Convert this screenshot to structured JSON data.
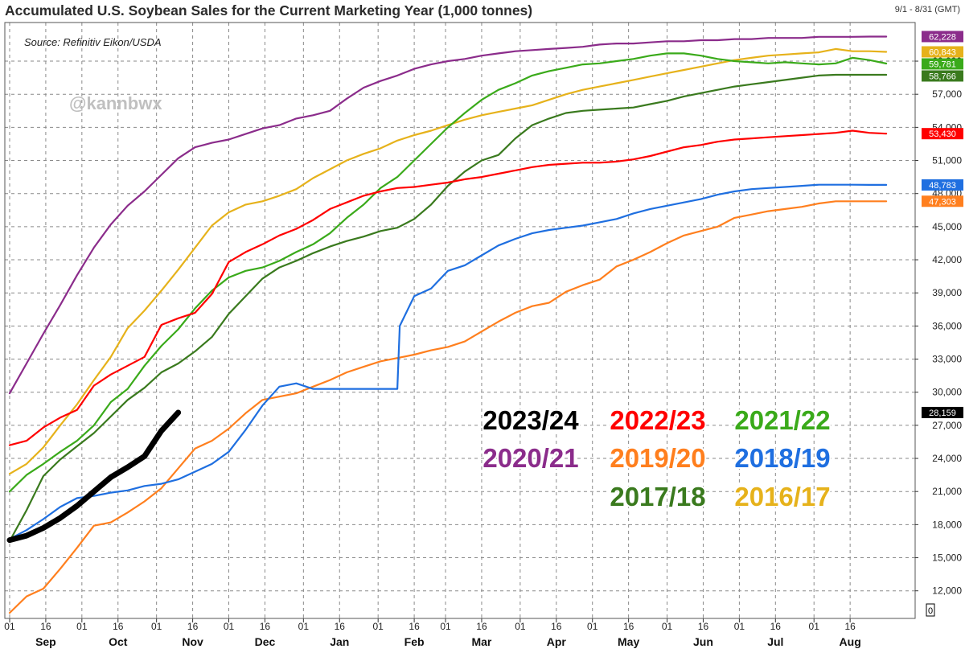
{
  "title": "Accumulated U.S. Soybean Sales for the Current Marketing Year (1,000 tonnes)",
  "date_range": "9/1 - 8/31 (GMT)",
  "source": "Source: Refinitiv Eikon/USDA",
  "watermark": "@kannbwx",
  "chart_data": {
    "type": "line",
    "title": "Accumulated U.S. Soybean Sales for the Current Marketing Year (1,000 tonnes)",
    "xlabel": "",
    "ylabel": "",
    "x_unit": "days since Sep 1",
    "xlim": [
      -2,
      376
    ],
    "ylim": [
      9500,
      63500
    ],
    "grid": true,
    "y_axis_side": "right",
    "y_ticks": [
      12000,
      15000,
      18000,
      21000,
      24000,
      27000,
      30000,
      33000,
      36000,
      39000,
      42000,
      45000,
      48000,
      51000,
      54000,
      57000,
      60000
    ],
    "y_tick_labels": [
      "12,000",
      "15,000",
      "18,000",
      "21,000",
      "24,000",
      "27,000",
      "30,000",
      "33,000",
      "36,000",
      "39,000",
      "42,000",
      "45,000",
      "48,000",
      "51,000",
      "54,000",
      "57,000",
      "60,000"
    ],
    "zero_label": "0",
    "x_ticks": [
      {
        "day": 0,
        "label": "01"
      },
      {
        "day": 15,
        "label": "16"
      },
      {
        "day": 30,
        "label": "01"
      },
      {
        "day": 45,
        "label": "16"
      },
      {
        "day": 61,
        "label": "01"
      },
      {
        "day": 76,
        "label": "16"
      },
      {
        "day": 91,
        "label": "01"
      },
      {
        "day": 106,
        "label": "16"
      },
      {
        "day": 122,
        "label": "01"
      },
      {
        "day": 137,
        "label": "16"
      },
      {
        "day": 153,
        "label": "01"
      },
      {
        "day": 168,
        "label": "16"
      },
      {
        "day": 181,
        "label": "01"
      },
      {
        "day": 196,
        "label": "16"
      },
      {
        "day": 212,
        "label": "01"
      },
      {
        "day": 227,
        "label": "16"
      },
      {
        "day": 242,
        "label": "01"
      },
      {
        "day": 257,
        "label": "16"
      },
      {
        "day": 273,
        "label": "01"
      },
      {
        "day": 288,
        "label": "16"
      },
      {
        "day": 303,
        "label": "01"
      },
      {
        "day": 318,
        "label": "16"
      },
      {
        "day": 334,
        "label": "01"
      },
      {
        "day": 349,
        "label": "16"
      }
    ],
    "month_labels": [
      {
        "day": 15,
        "label": "Sep"
      },
      {
        "day": 45,
        "label": "Oct"
      },
      {
        "day": 76,
        "label": "Nov"
      },
      {
        "day": 106,
        "label": "Dec"
      },
      {
        "day": 137,
        "label": "Jan"
      },
      {
        "day": 168,
        "label": "Feb"
      },
      {
        "day": 196,
        "label": "Mar"
      },
      {
        "day": 227,
        "label": "Apr"
      },
      {
        "day": 257,
        "label": "May"
      },
      {
        "day": 288,
        "label": "Jun"
      },
      {
        "day": 318,
        "label": "Jul"
      },
      {
        "day": 349,
        "label": "Aug"
      }
    ],
    "series": [
      {
        "name": "2023/24",
        "color": "#000000",
        "width": 7,
        "end_label": "28,159",
        "end_value": 28159,
        "x": [
          0,
          7,
          14,
          21,
          28,
          35,
          42,
          49,
          56,
          63,
          70
        ],
        "y": [
          16600,
          17000,
          17700,
          18600,
          19700,
          21000,
          22300,
          23200,
          24200,
          26500,
          28159
        ]
      },
      {
        "name": "2022/23",
        "color": "#ff0000",
        "width": 2.2,
        "end_label": "53,430",
        "end_value": 53430,
        "x": [
          0,
          7,
          14,
          21,
          28,
          35,
          42,
          49,
          56,
          63,
          70,
          77,
          84,
          91,
          98,
          105,
          112,
          119,
          126,
          133,
          140,
          147,
          154,
          161,
          168,
          175,
          182,
          189,
          196,
          203,
          210,
          217,
          224,
          231,
          238,
          245,
          252,
          259,
          266,
          273,
          280,
          287,
          294,
          301,
          308,
          315,
          322,
          329,
          336,
          343,
          350,
          357,
          364
        ],
        "y": [
          25200,
          25600,
          26800,
          27700,
          28400,
          30600,
          31600,
          32400,
          33200,
          36100,
          36700,
          37200,
          38900,
          41800,
          42700,
          43400,
          44200,
          44800,
          45600,
          46600,
          47200,
          47800,
          48200,
          48500,
          48600,
          48800,
          49000,
          49300,
          49500,
          49800,
          50100,
          50400,
          50600,
          50700,
          50800,
          50800,
          50900,
          51100,
          51400,
          51800,
          52200,
          52400,
          52700,
          52900,
          53000,
          53100,
          53200,
          53300,
          53400,
          53500,
          53700,
          53500,
          53430
        ]
      },
      {
        "name": "2021/22",
        "color": "#3aaa1a",
        "width": 2.2,
        "end_label": "59,781",
        "end_value": 59781,
        "x": [
          0,
          7,
          14,
          21,
          28,
          35,
          42,
          49,
          56,
          63,
          70,
          77,
          84,
          91,
          98,
          105,
          112,
          119,
          126,
          133,
          140,
          147,
          154,
          161,
          168,
          175,
          182,
          189,
          196,
          203,
          210,
          217,
          224,
          231,
          238,
          245,
          252,
          259,
          266,
          273,
          280,
          287,
          294,
          301,
          308,
          315,
          322,
          329,
          336,
          343,
          350,
          357,
          364
        ],
        "y": [
          21000,
          22500,
          23500,
          24600,
          25600,
          27000,
          29100,
          30300,
          32400,
          34200,
          35700,
          37600,
          39200,
          40400,
          41000,
          41300,
          41900,
          42700,
          43400,
          44400,
          45800,
          47000,
          48500,
          49500,
          51000,
          52500,
          54000,
          55300,
          56500,
          57400,
          58000,
          58700,
          59100,
          59400,
          59700,
          59800,
          60000,
          60200,
          60500,
          60700,
          60700,
          60500,
          60200,
          60000,
          59900,
          59800,
          59900,
          59800,
          59700,
          59800,
          60300,
          60100,
          59781
        ]
      },
      {
        "name": "2020/21",
        "color": "#8b2c8b",
        "width": 2.2,
        "end_label": "62,228",
        "end_value": 62228,
        "x": [
          0,
          7,
          14,
          21,
          28,
          35,
          42,
          49,
          56,
          63,
          70,
          77,
          84,
          91,
          98,
          105,
          112,
          119,
          126,
          133,
          140,
          147,
          154,
          161,
          168,
          175,
          182,
          189,
          196,
          203,
          210,
          217,
          224,
          231,
          238,
          245,
          252,
          259,
          266,
          273,
          280,
          287,
          294,
          301,
          308,
          315,
          322,
          329,
          336,
          343,
          350,
          357,
          364
        ],
        "y": [
          29900,
          32600,
          35300,
          37900,
          40600,
          43100,
          45200,
          46900,
          48200,
          49700,
          51200,
          52200,
          52600,
          52900,
          53400,
          53900,
          54200,
          54800,
          55100,
          55500,
          56600,
          57600,
          58200,
          58700,
          59300,
          59700,
          60000,
          60200,
          60500,
          60700,
          60900,
          61000,
          61100,
          61200,
          61300,
          61500,
          61600,
          61600,
          61700,
          61800,
          61800,
          61900,
          61900,
          62000,
          62000,
          62100,
          62100,
          62100,
          62200,
          62200,
          62200,
          62228,
          62228
        ]
      },
      {
        "name": "2019/20",
        "color": "#ff7f1e",
        "width": 2.2,
        "end_label": "47,303",
        "end_value": 47303,
        "x": [
          0,
          7,
          14,
          21,
          28,
          35,
          42,
          49,
          56,
          63,
          70,
          77,
          84,
          91,
          98,
          105,
          112,
          119,
          126,
          133,
          140,
          147,
          154,
          161,
          168,
          175,
          182,
          189,
          196,
          203,
          210,
          217,
          224,
          231,
          238,
          245,
          252,
          259,
          266,
          273,
          280,
          287,
          294,
          301,
          308,
          315,
          322,
          329,
          336,
          343,
          350,
          357,
          364
        ],
        "y": [
          10000,
          11500,
          12200,
          14000,
          15900,
          17900,
          18200,
          19100,
          20100,
          21300,
          23100,
          24900,
          25600,
          26700,
          28100,
          29300,
          29600,
          29900,
          30500,
          31100,
          31800,
          32300,
          32800,
          33100,
          33400,
          33800,
          34100,
          34600,
          35500,
          36400,
          37200,
          37800,
          38100,
          39100,
          39700,
          40200,
          41400,
          42000,
          42700,
          43500,
          44200,
          44600,
          45000,
          45800,
          46100,
          46400,
          46600,
          46800,
          47100,
          47300,
          47300,
          47300,
          47303
        ]
      },
      {
        "name": "2018/19",
        "color": "#1f6fe0",
        "width": 2.2,
        "end_label": "48,783",
        "end_value": 48783,
        "x": [
          0,
          7,
          14,
          21,
          28,
          35,
          42,
          49,
          56,
          63,
          70,
          77,
          84,
          91,
          98,
          105,
          112,
          119,
          126,
          133,
          140,
          147,
          154,
          161,
          162,
          168,
          175,
          182,
          189,
          196,
          203,
          210,
          217,
          224,
          231,
          238,
          245,
          252,
          259,
          266,
          273,
          280,
          287,
          294,
          301,
          308,
          315,
          322,
          329,
          336,
          343,
          350,
          357,
          364
        ],
        "y": [
          16700,
          17500,
          18500,
          19600,
          20400,
          20600,
          20900,
          21100,
          21500,
          21700,
          22100,
          22800,
          23500,
          24600,
          26600,
          28800,
          30500,
          30800,
          30300,
          30300,
          30300,
          30300,
          30300,
          30300,
          36000,
          38700,
          39400,
          41000,
          41500,
          42400,
          43300,
          43900,
          44400,
          44700,
          44900,
          45100,
          45400,
          45700,
          46200,
          46600,
          46900,
          47200,
          47500,
          47900,
          48200,
          48400,
          48500,
          48600,
          48700,
          48800,
          48800,
          48800,
          48783,
          48783
        ]
      },
      {
        "name": "2017/18",
        "color": "#3a7a1e",
        "width": 2.2,
        "end_label": "58,766",
        "end_value": 58766,
        "x": [
          0,
          7,
          14,
          21,
          28,
          35,
          42,
          49,
          56,
          63,
          70,
          77,
          84,
          91,
          98,
          105,
          112,
          119,
          126,
          133,
          140,
          147,
          154,
          161,
          168,
          175,
          182,
          189,
          196,
          203,
          210,
          217,
          224,
          231,
          238,
          245,
          252,
          259,
          266,
          273,
          280,
          287,
          294,
          301,
          308,
          315,
          322,
          329,
          336,
          343,
          350,
          357,
          364
        ],
        "y": [
          16500,
          19300,
          22400,
          23900,
          25100,
          26300,
          27800,
          29300,
          30400,
          31800,
          32600,
          33700,
          35000,
          37100,
          38700,
          40300,
          41300,
          41900,
          42600,
          43200,
          43700,
          44100,
          44600,
          44900,
          45700,
          47000,
          48700,
          50000,
          51000,
          51500,
          53000,
          54200,
          54800,
          55300,
          55500,
          55600,
          55700,
          55800,
          56100,
          56400,
          56800,
          57100,
          57400,
          57700,
          57900,
          58100,
          58300,
          58500,
          58700,
          58766,
          58766,
          58766,
          58766
        ]
      },
      {
        "name": "2016/17",
        "color": "#e6b21b",
        "width": 2.2,
        "end_label": "60,843",
        "end_value": 60843,
        "x": [
          0,
          7,
          14,
          21,
          28,
          35,
          42,
          49,
          56,
          63,
          70,
          77,
          84,
          91,
          98,
          105,
          112,
          119,
          126,
          133,
          140,
          147,
          154,
          161,
          168,
          175,
          182,
          189,
          196,
          203,
          210,
          217,
          224,
          231,
          238,
          245,
          252,
          259,
          266,
          273,
          280,
          287,
          294,
          301,
          308,
          315,
          322,
          329,
          336,
          343,
          350,
          357,
          364
        ],
        "y": [
          22600,
          23500,
          25000,
          27000,
          28900,
          31100,
          33200,
          35800,
          37400,
          39200,
          41100,
          43100,
          45100,
          46300,
          47000,
          47300,
          47800,
          48400,
          49400,
          50200,
          51000,
          51600,
          52100,
          52800,
          53300,
          53700,
          54200,
          54700,
          55100,
          55400,
          55700,
          56000,
          56500,
          57000,
          57400,
          57700,
          58000,
          58300,
          58600,
          58900,
          59200,
          59500,
          59800,
          60100,
          60300,
          60500,
          60600,
          60700,
          60800,
          61100,
          60900,
          60900,
          60843
        ]
      }
    ],
    "legend": [
      [
        "2023/24",
        "2022/23",
        "2021/22"
      ],
      [
        "2020/21",
        "2019/20",
        "2018/19"
      ],
      [
        "",
        "2017/18",
        "2016/17"
      ]
    ],
    "legend_position": "lower-right"
  }
}
